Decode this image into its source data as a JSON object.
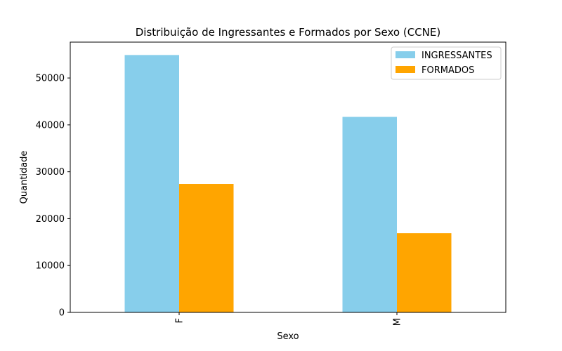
{
  "chart_data": {
    "type": "bar",
    "title": "Distribuição de Ingressantes e Formados por Sexo (CCNE)",
    "xlabel": "Sexo",
    "ylabel": "Quantidade",
    "categories": [
      "F",
      "M"
    ],
    "series": [
      {
        "name": "INGRESSANTES",
        "color": "#87ceeb",
        "values": [
          54900,
          41700
        ]
      },
      {
        "name": "FORMADOS",
        "color": "#ffa500",
        "values": [
          27400,
          16900
        ]
      }
    ],
    "ylim": [
      0,
      57650
    ],
    "yticks": [
      0,
      10000,
      20000,
      30000,
      40000,
      50000
    ],
    "grid": false,
    "legend_position": "top-right",
    "x_tick_rotation": "vertical"
  }
}
